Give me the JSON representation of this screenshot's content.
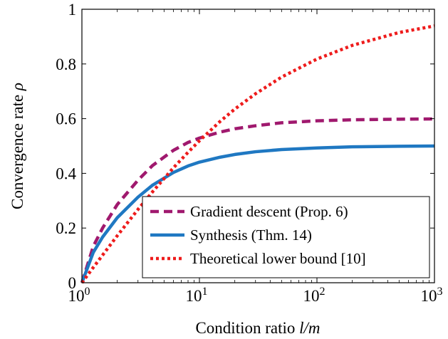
{
  "chart_data": {
    "type": "line",
    "xlabel": "Condition ratio l/m",
    "ylabel": "Convergence rate ρ",
    "xscale": "log",
    "xlim": [
      1,
      1000
    ],
    "ylim": [
      0,
      1
    ],
    "x_ticks": [
      {
        "value": 1,
        "base": "10",
        "exp": "0"
      },
      {
        "value": 10,
        "base": "10",
        "exp": "1"
      },
      {
        "value": 100,
        "base": "10",
        "exp": "2"
      },
      {
        "value": 1000,
        "base": "10",
        "exp": "3"
      }
    ],
    "y_ticks": [
      "0",
      "0.2",
      "0.4",
      "0.6",
      "0.8",
      "1"
    ],
    "grid": false,
    "legend_position": "bottom-right",
    "series": [
      {
        "name": "Gradient descent (Prop. 6)",
        "color": "#a0196e",
        "style": "dashed",
        "x": [
          1,
          1.25,
          1.5,
          2,
          3,
          4,
          6,
          8,
          10,
          15,
          20,
          30,
          50,
          100,
          200,
          500,
          1000
        ],
        "y": [
          0,
          0.133,
          0.2,
          0.286,
          0.375,
          0.429,
          0.484,
          0.513,
          0.529,
          0.551,
          0.563,
          0.574,
          0.585,
          0.592,
          0.596,
          0.598,
          0.599
        ]
      },
      {
        "name": "Synthesis (Thm. 14)",
        "color": "#1f78c2",
        "style": "solid",
        "x": [
          1,
          1.25,
          1.5,
          2,
          3,
          4,
          6,
          8,
          10,
          15,
          20,
          30,
          50,
          100,
          200,
          500,
          1000
        ],
        "y": [
          0,
          0.111,
          0.167,
          0.238,
          0.313,
          0.357,
          0.403,
          0.427,
          0.441,
          0.459,
          0.469,
          0.479,
          0.487,
          0.493,
          0.497,
          0.499,
          0.5
        ]
      },
      {
        "name": "Theoretical lower bound [10]",
        "color": "#ee1c1c",
        "style": "dotted",
        "x": [
          1,
          1.25,
          1.5,
          2,
          3,
          4,
          6,
          8,
          10,
          15,
          20,
          30,
          50,
          100,
          200,
          500,
          1000
        ],
        "y": [
          0,
          0.056,
          0.101,
          0.172,
          0.268,
          0.333,
          0.42,
          0.477,
          0.519,
          0.59,
          0.635,
          0.691,
          0.752,
          0.818,
          0.868,
          0.915,
          0.939
        ]
      }
    ]
  }
}
